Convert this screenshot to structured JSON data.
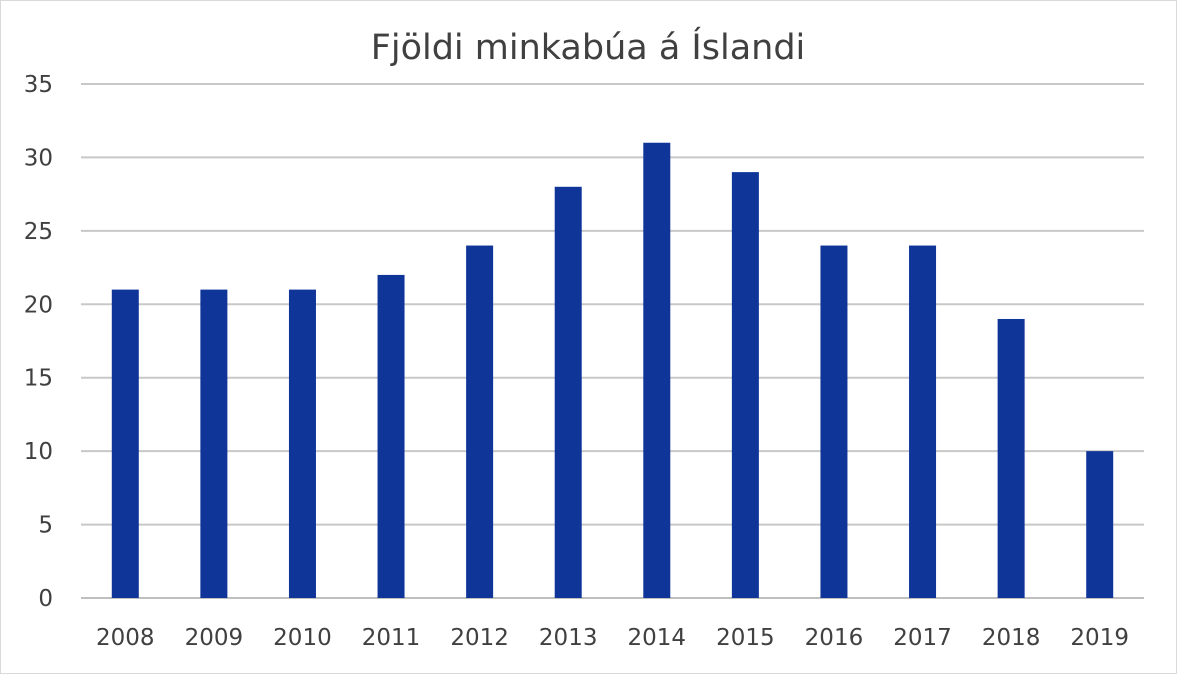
{
  "chart_data": {
    "type": "bar",
    "title": "Fjöldi minkabúa á Íslandi",
    "xlabel": "",
    "ylabel": "",
    "categories": [
      "2008",
      "2009",
      "2010",
      "2011",
      "2012",
      "2013",
      "2014",
      "2015",
      "2016",
      "2017",
      "2018",
      "2019"
    ],
    "values": [
      21,
      21,
      21,
      22,
      24,
      28,
      31,
      29,
      24,
      24,
      19,
      10
    ],
    "ylim": [
      0,
      35
    ],
    "yticks": [
      "0",
      "5",
      "10",
      "15",
      "20",
      "25",
      "30",
      "35"
    ],
    "grid": true,
    "legend": "none",
    "bar_color": "#0f3599"
  }
}
